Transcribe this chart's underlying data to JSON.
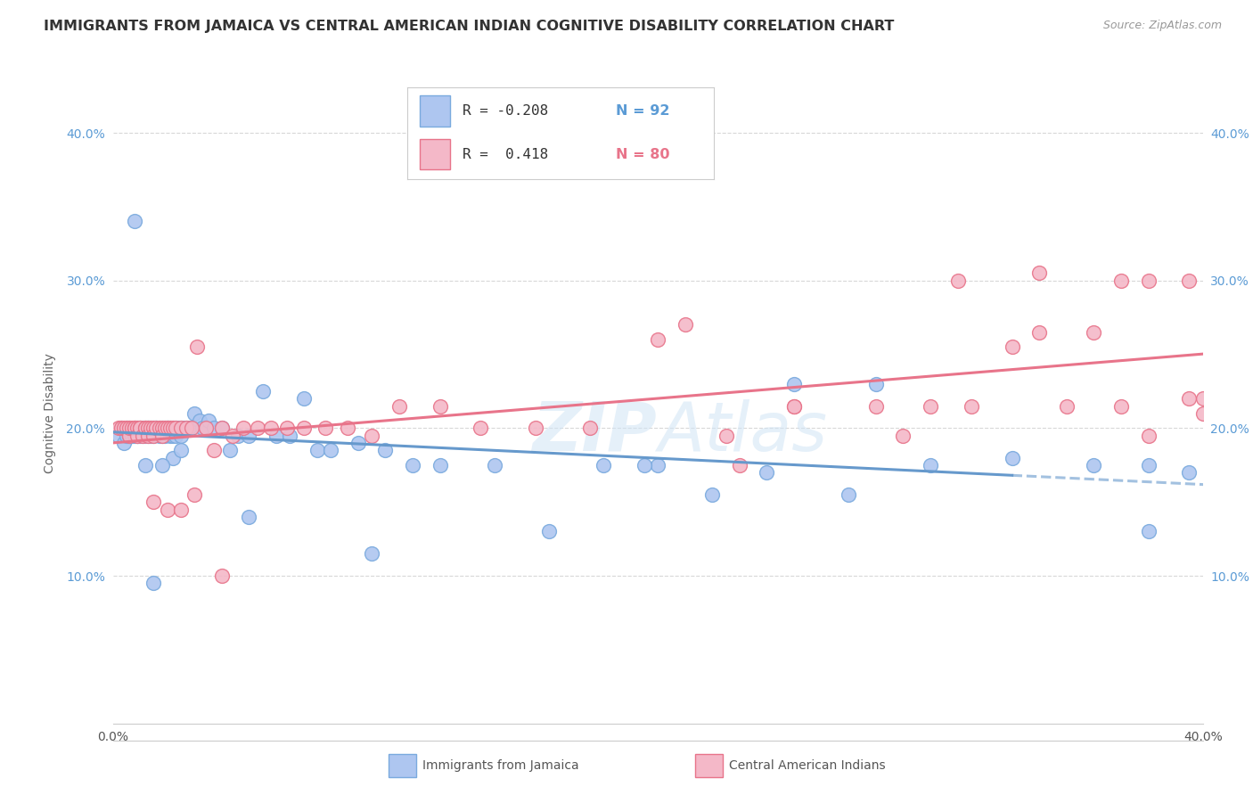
{
  "title": "IMMIGRANTS FROM JAMAICA VS CENTRAL AMERICAN INDIAN COGNITIVE DISABILITY CORRELATION CHART",
  "source": "Source: ZipAtlas.com",
  "ylabel": "Cognitive Disability",
  "xlim": [
    0.0,
    0.4
  ],
  "ylim": [
    0.0,
    0.42
  ],
  "background_color": "#ffffff",
  "grid_color": "#d8d8d8",
  "watermark": "ZIPAtlas",
  "jamaica_color": "#aec6f0",
  "jamaica_edge": "#7aaade",
  "central_american_color": "#f4b8c8",
  "central_american_edge": "#e8748a",
  "jamaica_line_color": "#6699cc",
  "central_american_line_color": "#e8748a",
  "jamaica_x": [
    0.002,
    0.003,
    0.004,
    0.005,
    0.005,
    0.006,
    0.006,
    0.007,
    0.007,
    0.008,
    0.008,
    0.009,
    0.009,
    0.009,
    0.01,
    0.01,
    0.011,
    0.011,
    0.012,
    0.012,
    0.013,
    0.013,
    0.013,
    0.014,
    0.014,
    0.015,
    0.015,
    0.016,
    0.016,
    0.017,
    0.017,
    0.018,
    0.018,
    0.019,
    0.019,
    0.02,
    0.02,
    0.021,
    0.021,
    0.022,
    0.022,
    0.023,
    0.023,
    0.024,
    0.025,
    0.025,
    0.026,
    0.027,
    0.028,
    0.03,
    0.032,
    0.033,
    0.035,
    0.037,
    0.04,
    0.043,
    0.046,
    0.05,
    0.055,
    0.06,
    0.065,
    0.07,
    0.075,
    0.08,
    0.09,
    0.1,
    0.11,
    0.12,
    0.14,
    0.16,
    0.18,
    0.2,
    0.22,
    0.24,
    0.27,
    0.3,
    0.33,
    0.36,
    0.38,
    0.395,
    0.28,
    0.25,
    0.38,
    0.195,
    0.095,
    0.05,
    0.015,
    0.008,
    0.022,
    0.018,
    0.012,
    0.025
  ],
  "jamaica_y": [
    0.195,
    0.2,
    0.19,
    0.2,
    0.195,
    0.2,
    0.195,
    0.195,
    0.195,
    0.2,
    0.195,
    0.195,
    0.2,
    0.195,
    0.2,
    0.195,
    0.2,
    0.195,
    0.195,
    0.2,
    0.2,
    0.195,
    0.2,
    0.2,
    0.195,
    0.2,
    0.195,
    0.2,
    0.2,
    0.2,
    0.195,
    0.2,
    0.195,
    0.2,
    0.195,
    0.2,
    0.2,
    0.2,
    0.195,
    0.2,
    0.195,
    0.2,
    0.195,
    0.2,
    0.2,
    0.195,
    0.2,
    0.2,
    0.2,
    0.21,
    0.205,
    0.2,
    0.205,
    0.2,
    0.2,
    0.185,
    0.195,
    0.195,
    0.225,
    0.195,
    0.195,
    0.22,
    0.185,
    0.185,
    0.19,
    0.185,
    0.175,
    0.175,
    0.175,
    0.13,
    0.175,
    0.175,
    0.155,
    0.17,
    0.155,
    0.175,
    0.18,
    0.175,
    0.175,
    0.17,
    0.23,
    0.23,
    0.13,
    0.175,
    0.115,
    0.14,
    0.095,
    0.34,
    0.18,
    0.175,
    0.175,
    0.185
  ],
  "central_american_x": [
    0.002,
    0.003,
    0.004,
    0.005,
    0.006,
    0.006,
    0.007,
    0.008,
    0.008,
    0.009,
    0.009,
    0.01,
    0.01,
    0.011,
    0.012,
    0.012,
    0.013,
    0.013,
    0.014,
    0.015,
    0.015,
    0.016,
    0.017,
    0.018,
    0.018,
    0.019,
    0.02,
    0.021,
    0.022,
    0.023,
    0.025,
    0.027,
    0.029,
    0.031,
    0.034,
    0.037,
    0.04,
    0.044,
    0.048,
    0.053,
    0.058,
    0.064,
    0.07,
    0.078,
    0.086,
    0.095,
    0.105,
    0.12,
    0.135,
    0.155,
    0.175,
    0.2,
    0.225,
    0.25,
    0.28,
    0.31,
    0.34,
    0.37,
    0.395,
    0.4,
    0.38,
    0.36,
    0.34,
    0.33,
    0.315,
    0.3,
    0.29,
    0.25,
    0.23,
    0.21,
    0.38,
    0.395,
    0.4,
    0.37,
    0.35,
    0.015,
    0.02,
    0.025,
    0.03,
    0.04
  ],
  "central_american_y": [
    0.2,
    0.2,
    0.2,
    0.2,
    0.195,
    0.2,
    0.2,
    0.2,
    0.2,
    0.2,
    0.195,
    0.2,
    0.2,
    0.195,
    0.2,
    0.2,
    0.2,
    0.195,
    0.2,
    0.2,
    0.195,
    0.2,
    0.2,
    0.2,
    0.195,
    0.2,
    0.2,
    0.2,
    0.2,
    0.2,
    0.2,
    0.2,
    0.2,
    0.255,
    0.2,
    0.185,
    0.2,
    0.195,
    0.2,
    0.2,
    0.2,
    0.2,
    0.2,
    0.2,
    0.2,
    0.195,
    0.215,
    0.215,
    0.2,
    0.2,
    0.2,
    0.26,
    0.195,
    0.215,
    0.215,
    0.3,
    0.305,
    0.3,
    0.3,
    0.22,
    0.3,
    0.265,
    0.265,
    0.255,
    0.215,
    0.215,
    0.195,
    0.215,
    0.175,
    0.27,
    0.195,
    0.22,
    0.21,
    0.215,
    0.215,
    0.15,
    0.145,
    0.145,
    0.155,
    0.1
  ]
}
